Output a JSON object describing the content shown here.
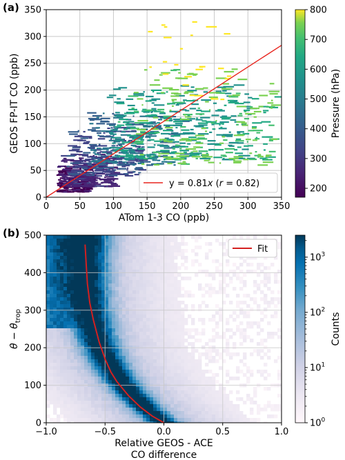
{
  "chart_data": [
    {
      "panel_label": "(a)",
      "type": "scatter",
      "xlabel": "ATom 1-3 CO (ppb)",
      "ylabel": "GEOS FP-IT CO (ppb)",
      "xlim": [
        0,
        350
      ],
      "ylim": [
        0,
        350
      ],
      "xticks": [
        0,
        50,
        100,
        150,
        200,
        250,
        300,
        350
      ],
      "yticks": [
        0,
        50,
        100,
        150,
        200,
        250,
        300,
        350
      ],
      "grid": true,
      "legend_position": "lower-right",
      "fit": {
        "label_prefix": "y = 0.81",
        "label_var": "x",
        "label_r_open": " (",
        "label_r_var": "r",
        "label_r_close": " = 0.82)",
        "slope": 0.81,
        "color": "#e8251e"
      },
      "colorbar": {
        "label": "Pressure (hPa)",
        "range": [
          170,
          800
        ],
        "ticks": [
          200,
          300,
          400,
          500,
          600,
          700,
          800
        ],
        "colormap": "viridis"
      },
      "point_groups": [
        {
          "pressure": 190,
          "x_range": [
            15,
            60
          ],
          "y_range": [
            10,
            60
          ],
          "n": 160
        },
        {
          "pressure": 250,
          "x_range": [
            20,
            100
          ],
          "y_range": [
            20,
            80
          ],
          "n": 190
        },
        {
          "pressure": 330,
          "x_range": [
            30,
            140
          ],
          "y_range": [
            40,
            130
          ],
          "n": 190
        },
        {
          "pressure": 420,
          "x_range": [
            60,
            200
          ],
          "y_range": [
            60,
            160
          ],
          "n": 190
        },
        {
          "pressure": 520,
          "x_range": [
            90,
            300
          ],
          "y_range": [
            70,
            210
          ],
          "n": 200
        },
        {
          "pressure": 620,
          "x_range": [
            100,
            340
          ],
          "y_range": [
            70,
            200
          ],
          "n": 180
        },
        {
          "pressure": 720,
          "x_range": [
            120,
            340
          ],
          "y_range": [
            60,
            240
          ],
          "n": 140
        },
        {
          "pressure": 790,
          "x_range": [
            150,
            270
          ],
          "y_range": [
            180,
            335
          ],
          "n": 30
        }
      ]
    },
    {
      "panel_label": "(b)",
      "type": "heatmap",
      "xlabel_lines": [
        "Relative GEOS - ACE",
        "CO difference"
      ],
      "ylabel_base": "θ − θ",
      "ylabel_sub": "trop",
      "xlim": [
        -1.0,
        1.0
      ],
      "ylim": [
        0,
        500
      ],
      "xticks": [
        "−1.0",
        "−0.5",
        "0.0",
        "0.5",
        "1.0"
      ],
      "xtick_values": [
        -1.0,
        -0.5,
        0.0,
        0.5,
        1.0
      ],
      "yticks": [
        0,
        100,
        200,
        300,
        400,
        500
      ],
      "grid": true,
      "legend_position": "upper-right",
      "fit_label": "Fit",
      "fit_color": "#d42020",
      "fit_curve": {
        "x": [
          0.0,
          -0.1,
          -0.2,
          -0.3,
          -0.4,
          -0.45,
          -0.5,
          -0.55,
          -0.6,
          -0.63,
          -0.65,
          -0.66,
          -0.67
        ],
        "y": [
          0,
          18,
          42,
          72,
          110,
          135,
          170,
          215,
          275,
          320,
          370,
          420,
          475
        ]
      },
      "colorbar": {
        "label": "Counts",
        "scale": "log",
        "range": [
          1,
          2500
        ],
        "ticks": [
          1,
          10,
          100,
          1000
        ],
        "tick_labels": [
          "10",
          "10",
          "10",
          "10"
        ],
        "tick_exponents": [
          "0",
          "1",
          "2",
          "3"
        ],
        "colormap": "PuBu"
      }
    }
  ]
}
